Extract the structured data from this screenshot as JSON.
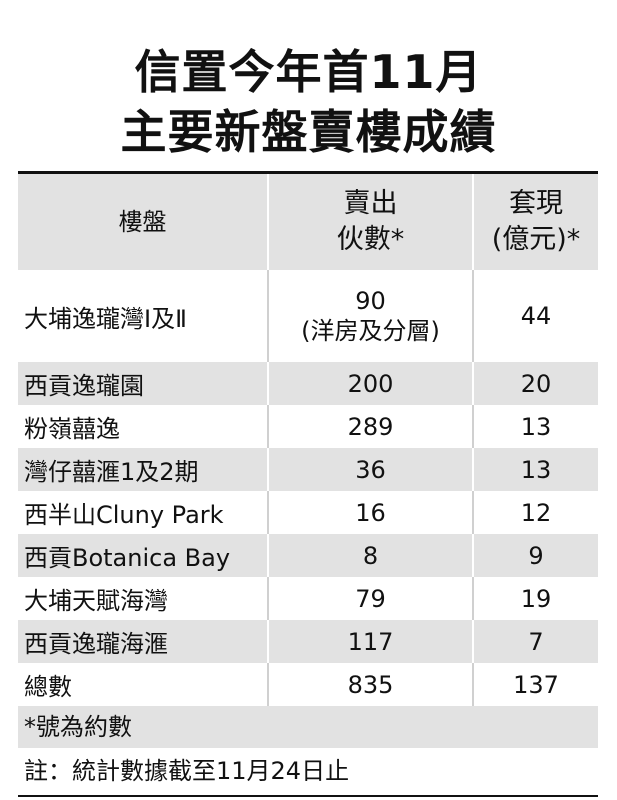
{
  "title": {
    "line1": "信置今年首11月",
    "line2": "主要新盤賣樓成績"
  },
  "table": {
    "headers": {
      "col1": "樓盤",
      "col2_line1": "賣出",
      "col2_line2": "伙數*",
      "col3_line1": "套現",
      "col3_line2": "(億元)*"
    },
    "rows": [
      {
        "name": "大埔逸瓏灣Ⅰ及Ⅱ",
        "units": "90",
        "units_note": "(洋房及分層)",
        "cash": "44"
      },
      {
        "name": "西貢逸瓏園",
        "units": "200",
        "cash": "20"
      },
      {
        "name": "粉嶺囍逸",
        "units": "289",
        "cash": "13"
      },
      {
        "name": "灣仔囍滙1及2期",
        "units": "36",
        "cash": "13"
      },
      {
        "name": "西半山Cluny Park",
        "units": "16",
        "cash": "12"
      },
      {
        "name": "西貢Botanica Bay",
        "units": "8",
        "cash": "9"
      },
      {
        "name": "大埔天賦海灣",
        "units": "79",
        "cash": "19"
      },
      {
        "name": "西貢逸瓏海滙",
        "units": "117",
        "cash": "7"
      },
      {
        "name": "總數",
        "units": "835",
        "cash": "137"
      }
    ]
  },
  "notes": {
    "approx": "*號為約數",
    "cutoff": "註：統計數據截至11月24日止"
  }
}
